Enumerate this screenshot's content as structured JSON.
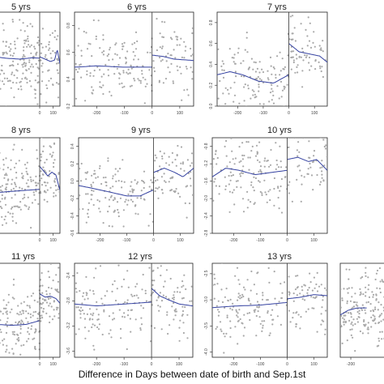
{
  "chart_data": [
    {
      "type": "scatter",
      "title": "5 yrs",
      "x_ticks": [
        "0",
        "100"
      ],
      "y_ticks": [],
      "cutoff_x": 0,
      "xlim": [
        -330,
        150
      ],
      "ylim": [
        -1,
        1
      ],
      "fit_left": {
        "x": [
          -330,
          -250,
          -150,
          -50,
          0
        ],
        "y": [
          0.05,
          0.02,
          0.0,
          0.03,
          0.02
        ]
      },
      "fit_right": {
        "x": [
          0,
          40,
          80,
          110,
          130,
          150
        ],
        "y": [
          0.05,
          0.0,
          -0.05,
          -0.02,
          0.2,
          -0.1
        ]
      }
    },
    {
      "type": "scatter",
      "title": "6 yrs",
      "x_ticks": [
        "-200",
        "-100",
        "0",
        "100"
      ],
      "y_ticks": [
        "0.8",
        "0.6",
        "0.4",
        "0.2"
      ],
      "cutoff_x": 0,
      "xlim": [
        -280,
        150
      ],
      "ylim": [
        0.2,
        0.9
      ],
      "fit_left": {
        "x": [
          -280,
          -200,
          -100,
          0
        ],
        "y": [
          0.49,
          0.5,
          0.49,
          0.49
        ]
      },
      "fit_right": {
        "x": [
          0,
          40,
          80,
          150
        ],
        "y": [
          0.58,
          0.57,
          0.55,
          0.54
        ]
      }
    },
    {
      "type": "scatter",
      "title": "7 yrs",
      "x_ticks": [
        "-200",
        "-100",
        "0",
        "100"
      ],
      "y_ticks": [
        "0.8",
        "0.6",
        "0.4",
        "0.2",
        "0.0"
      ],
      "cutoff_x": 0,
      "xlim": [
        -280,
        150
      ],
      "ylim": [
        0.0,
        0.9
      ],
      "fit_left": {
        "x": [
          -280,
          -230,
          -180,
          -120,
          -60,
          0
        ],
        "y": [
          0.3,
          0.33,
          0.3,
          0.24,
          0.22,
          0.3
        ]
      },
      "fit_right": {
        "x": [
          0,
          40,
          80,
          120,
          150
        ],
        "y": [
          0.6,
          0.52,
          0.5,
          0.48,
          0.42
        ]
      }
    },
    {
      "type": "scatter",
      "title": "8 yrs",
      "x_ticks": [
        "0",
        "100"
      ],
      "y_ticks": [],
      "cutoff_x": 0,
      "xlim": [
        -330,
        150
      ],
      "ylim": [
        -1,
        1
      ],
      "fit_left": {
        "x": [
          -330,
          -200,
          -100,
          0
        ],
        "y": [
          -0.15,
          -0.12,
          -0.1,
          -0.08
        ]
      },
      "fit_right": {
        "x": [
          0,
          30,
          60,
          90,
          120,
          150
        ],
        "y": [
          0.4,
          0.3,
          0.2,
          0.28,
          0.22,
          -0.1
        ]
      }
    },
    {
      "type": "scatter",
      "title": "9 yrs",
      "x_ticks": [
        "-200",
        "-100",
        "0",
        "100"
      ],
      "y_ticks": [
        "0.4",
        "0.2",
        "0.0",
        "-0.2",
        "-0.4",
        "-0.6"
      ],
      "cutoff_x": 0,
      "xlim": [
        -280,
        150
      ],
      "ylim": [
        -0.6,
        0.5
      ],
      "fit_left": {
        "x": [
          -280,
          -200,
          -100,
          -50,
          0
        ],
        "y": [
          -0.05,
          -0.1,
          -0.17,
          -0.17,
          -0.1
        ]
      },
      "fit_right": {
        "x": [
          0,
          40,
          80,
          110,
          150
        ],
        "y": [
          0.1,
          0.15,
          0.1,
          0.05,
          0.15
        ]
      }
    },
    {
      "type": "scatter",
      "title": "10 yrs",
      "x_ticks": [
        "-200",
        "-100",
        "0",
        "100"
      ],
      "y_ticks": [
        "-0.8",
        "-1.2",
        "-1.6",
        "-2.0",
        "-2.4",
        "-2.8"
      ],
      "cutoff_x": 0,
      "xlim": [
        -280,
        150
      ],
      "ylim": [
        -2.8,
        -0.6
      ],
      "fit_left": {
        "x": [
          -280,
          -230,
          -180,
          -120,
          -60,
          0
        ],
        "y": [
          -1.5,
          -1.3,
          -1.35,
          -1.45,
          -1.4,
          -1.35
        ]
      },
      "fit_right": {
        "x": [
          0,
          40,
          80,
          110,
          150
        ],
        "y": [
          -1.1,
          -1.05,
          -1.15,
          -1.1,
          -1.35
        ]
      }
    },
    {
      "type": "scatter",
      "title": "11 yrs",
      "x_ticks": [
        "0",
        "100"
      ],
      "y_ticks": [],
      "cutoff_x": 0,
      "xlim": [
        -330,
        150
      ],
      "ylim": [
        -1,
        1
      ],
      "fit_left": {
        "x": [
          -330,
          -200,
          -100,
          0
        ],
        "y": [
          -0.3,
          -0.32,
          -0.3,
          -0.22
        ]
      },
      "fit_right": {
        "x": [
          0,
          40,
          80,
          120,
          150
        ],
        "y": [
          0.35,
          0.28,
          0.3,
          0.25,
          0.15
        ]
      }
    },
    {
      "type": "scatter",
      "title": "12 yrs",
      "x_ticks": [
        "-200",
        "-100",
        "0",
        "100"
      ],
      "y_ticks": [
        "-2.4",
        "-2.8",
        "-3.2",
        "-3.6"
      ],
      "cutoff_x": 0,
      "xlim": [
        -280,
        150
      ],
      "ylim": [
        -3.7,
        -2.2
      ],
      "fit_left": {
        "x": [
          -280,
          -200,
          -100,
          0
        ],
        "y": [
          -2.85,
          -2.88,
          -2.85,
          -2.82
        ]
      },
      "fit_right": {
        "x": [
          0,
          30,
          60,
          100,
          150
        ],
        "y": [
          -2.6,
          -2.72,
          -2.78,
          -2.85,
          -2.88
        ]
      }
    },
    {
      "type": "scatter",
      "title": "13 yrs",
      "x_ticks": [
        "-200",
        "-100",
        "0",
        "100"
      ],
      "y_ticks": [
        "-2.5",
        "-3.0",
        "-3.5",
        "-4.0"
      ],
      "cutoff_x": 0,
      "xlim": [
        -280,
        150
      ],
      "ylim": [
        -4.1,
        -2.3
      ],
      "fit_left": {
        "x": [
          -280,
          -200,
          -100,
          0
        ],
        "y": [
          -3.15,
          -3.12,
          -3.1,
          -3.05
        ]
      },
      "fit_right": {
        "x": [
          0,
          50,
          100,
          150
        ],
        "y": [
          -2.98,
          -2.95,
          -2.9,
          -2.92
        ]
      }
    },
    {
      "type": "scatter",
      "title": "",
      "x_ticks": [
        "-200"
      ],
      "y_ticks": [],
      "cutoff_x": null,
      "xlim": [
        -280,
        150
      ],
      "ylim": [
        -1,
        1
      ],
      "fit_left": {
        "x": [
          -280,
          -220,
          -150,
          -80
        ],
        "y": [
          -0.1,
          0.0,
          0.05,
          0.05
        ]
      },
      "fit_right": {
        "x": [],
        "y": []
      }
    }
  ],
  "x_axis_title": "Difference in Days between date of birth and Sep.1st",
  "colors": {
    "point": "#a9a9a9",
    "fit": "#3340a0",
    "axis": "#222222",
    "cutoff": "#333333"
  }
}
